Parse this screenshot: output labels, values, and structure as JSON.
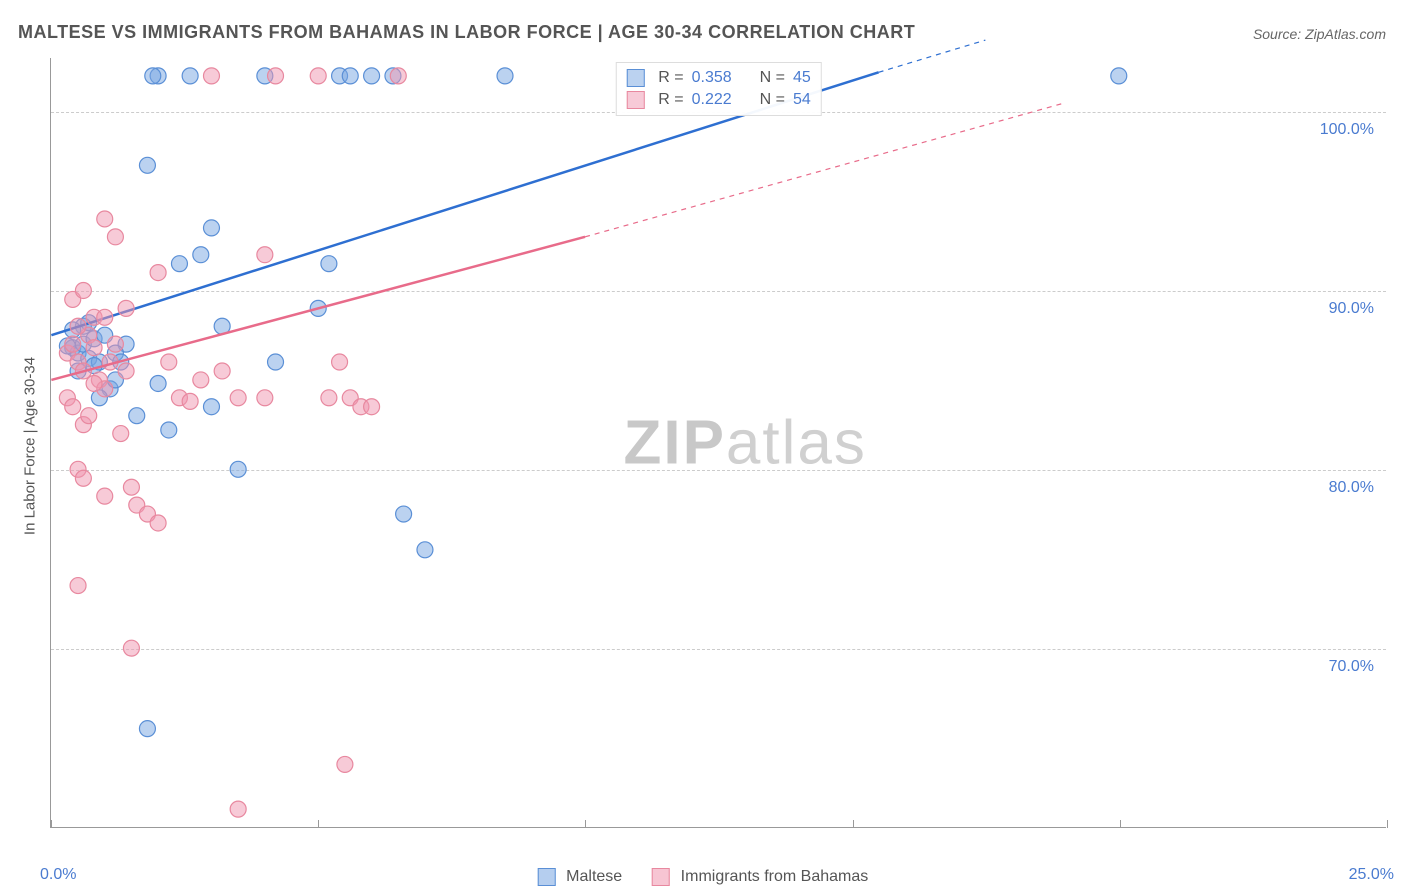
{
  "title": "MALTESE VS IMMIGRANTS FROM BAHAMAS IN LABOR FORCE | AGE 30-34 CORRELATION CHART",
  "source": "Source: ZipAtlas.com",
  "ylabel": "In Labor Force | Age 30-34",
  "watermark_bold": "ZIP",
  "watermark_rest": "atlas",
  "chart": {
    "type": "scatter",
    "xlim": [
      0,
      25
    ],
    "ylim": [
      60,
      103
    ],
    "x_tick_marks": [
      0,
      5,
      10,
      15,
      20,
      25
    ],
    "x_tick_labels": {
      "start": "0.0%",
      "end": "25.0%"
    },
    "y_ticks": [
      70,
      80,
      90,
      100
    ],
    "y_tick_labels": [
      "70.0%",
      "80.0%",
      "90.0%",
      "100.0%"
    ],
    "grid_color": "#cccccc",
    "axis_color": "#999999",
    "background_color": "#ffffff",
    "marker_radius": 8,
    "marker_opacity": 0.55,
    "marker_stroke_width": 1.2,
    "line_width": 2.5,
    "series": [
      {
        "name": "Maltese",
        "color_fill": "rgba(120,165,225,0.5)",
        "color_stroke": "#5a8fd6",
        "color_line": "#2e6fd1",
        "R": "0.358",
        "N": "45",
        "points": [
          [
            0.4,
            86.8
          ],
          [
            0.5,
            86.5
          ],
          [
            0.6,
            87.0
          ],
          [
            0.7,
            86.2
          ],
          [
            0.8,
            87.3
          ],
          [
            0.3,
            86.9
          ],
          [
            0.9,
            86.0
          ],
          [
            1.0,
            87.5
          ],
          [
            0.5,
            85.5
          ],
          [
            0.6,
            88.0
          ],
          [
            0.4,
            87.8
          ],
          [
            0.8,
            85.8
          ],
          [
            0.7,
            88.2
          ],
          [
            1.1,
            84.5
          ],
          [
            1.2,
            85.0
          ],
          [
            1.4,
            87.0
          ],
          [
            1.6,
            83.0
          ],
          [
            2.0,
            84.8
          ],
          [
            2.2,
            82.2
          ],
          [
            2.4,
            91.5
          ],
          [
            2.8,
            92.0
          ],
          [
            3.0,
            83.5
          ],
          [
            3.2,
            88.0
          ],
          [
            3.5,
            80.0
          ],
          [
            1.8,
            97.0
          ],
          [
            2.0,
            102.0
          ],
          [
            2.6,
            102.0
          ],
          [
            3.0,
            93.5
          ],
          [
            4.0,
            102.0
          ],
          [
            4.2,
            86.0
          ],
          [
            5.0,
            89.0
          ],
          [
            5.2,
            91.5
          ],
          [
            5.4,
            102.0
          ],
          [
            5.6,
            102.0
          ],
          [
            6.0,
            102.0
          ],
          [
            6.4,
            102.0
          ],
          [
            6.6,
            77.5
          ],
          [
            7.0,
            75.5
          ],
          [
            8.5,
            102.0
          ],
          [
            1.8,
            65.5
          ],
          [
            1.2,
            86.5
          ],
          [
            1.9,
            102.0
          ],
          [
            20.0,
            102.0
          ],
          [
            0.9,
            84.0
          ],
          [
            1.3,
            86.0
          ]
        ],
        "trend_solid": [
          [
            0,
            87.5
          ],
          [
            15.5,
            102.2
          ]
        ],
        "trend_dashed": [
          [
            15.5,
            102.2
          ],
          [
            17.5,
            104.0
          ]
        ]
      },
      {
        "name": "Immigrants from Bahamas",
        "color_fill": "rgba(240,150,175,0.5)",
        "color_stroke": "#e8889f",
        "color_line": "#e86b8a",
        "R": "0.222",
        "N": "54",
        "points": [
          [
            0.3,
            86.5
          ],
          [
            0.4,
            87.0
          ],
          [
            0.5,
            86.0
          ],
          [
            0.6,
            85.5
          ],
          [
            0.7,
            87.5
          ],
          [
            0.3,
            84.0
          ],
          [
            0.8,
            86.8
          ],
          [
            0.4,
            83.5
          ],
          [
            0.5,
            88.0
          ],
          [
            0.9,
            85.0
          ],
          [
            1.0,
            84.5
          ],
          [
            0.6,
            82.5
          ],
          [
            0.7,
            83.0
          ],
          [
            0.8,
            84.8
          ],
          [
            1.1,
            86.0
          ],
          [
            1.2,
            87.0
          ],
          [
            1.3,
            82.0
          ],
          [
            1.4,
            85.5
          ],
          [
            1.5,
            79.0
          ],
          [
            1.6,
            78.0
          ],
          [
            1.0,
            78.5
          ],
          [
            0.5,
            80.0
          ],
          [
            0.6,
            79.5
          ],
          [
            1.8,
            77.5
          ],
          [
            2.0,
            77.0
          ],
          [
            1.5,
            70.0
          ],
          [
            2.2,
            86.0
          ],
          [
            2.4,
            84.0
          ],
          [
            2.6,
            83.8
          ],
          [
            2.8,
            85.0
          ],
          [
            3.0,
            102.0
          ],
          [
            3.2,
            85.5
          ],
          [
            3.5,
            84.0
          ],
          [
            4.0,
            84.0
          ],
          [
            4.2,
            102.0
          ],
          [
            5.0,
            102.0
          ],
          [
            5.2,
            84.0
          ],
          [
            5.4,
            86.0
          ],
          [
            5.6,
            84.0
          ],
          [
            5.8,
            83.5
          ],
          [
            6.0,
            83.5
          ],
          [
            6.5,
            102.0
          ],
          [
            4.0,
            92.0
          ],
          [
            0.4,
            89.5
          ],
          [
            0.6,
            90.0
          ],
          [
            0.8,
            88.5
          ],
          [
            1.0,
            94.0
          ],
          [
            1.2,
            93.0
          ],
          [
            1.4,
            89.0
          ],
          [
            2.0,
            91.0
          ],
          [
            3.5,
            61.0
          ],
          [
            5.5,
            63.5
          ],
          [
            0.5,
            73.5
          ],
          [
            1.0,
            88.5
          ]
        ],
        "trend_solid": [
          [
            0,
            85.0
          ],
          [
            10.0,
            93.0
          ]
        ],
        "trend_dashed": [
          [
            10.0,
            93.0
          ],
          [
            19.0,
            100.5
          ]
        ]
      }
    ],
    "legend_bottom": [
      {
        "label": "Maltese",
        "fill": "rgba(120,165,225,0.55)",
        "stroke": "#5a8fd6"
      },
      {
        "label": "Immigrants from Bahamas",
        "fill": "rgba(240,150,175,0.55)",
        "stroke": "#e8889f"
      }
    ]
  }
}
